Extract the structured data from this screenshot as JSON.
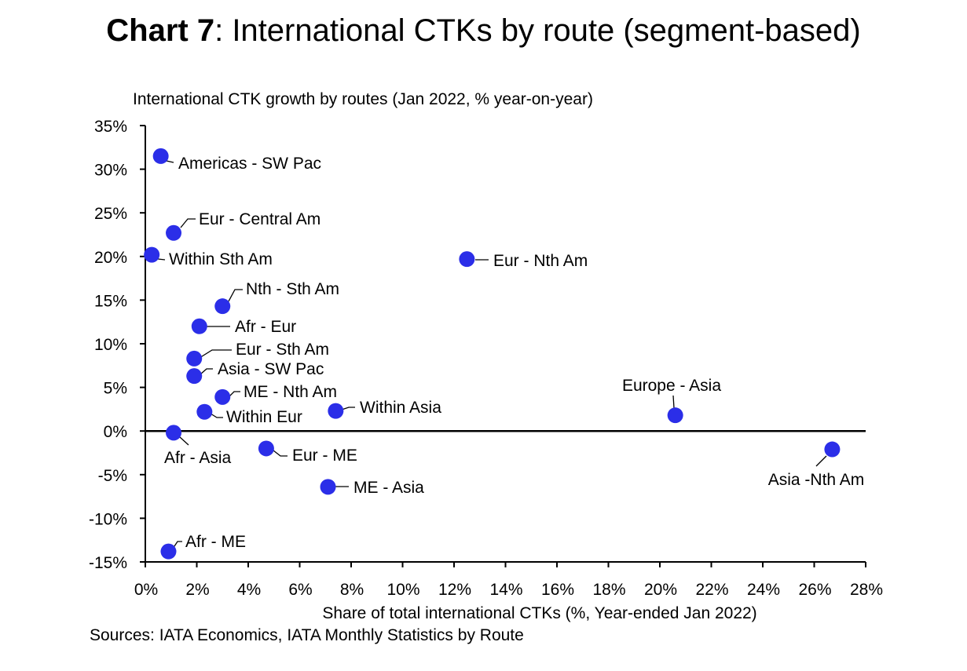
{
  "title": {
    "bold": "Chart 7",
    "rest": ": International CTKs by route (segment-based)"
  },
  "sources": "Sources: IATA Economics, IATA Monthly Statistics by Route",
  "colors": {
    "marker": "#2b2ee8",
    "axis": "#000000"
  },
  "chart_data": {
    "type": "scatter",
    "title": "International CTK growth by routes (Jan 2022, % year-on-year)",
    "xlabel": "Share of total international CTKs (%, Year-ended Jan 2022)",
    "ylabel": "",
    "xlim": [
      0,
      28
    ],
    "ylim": [
      -15,
      35
    ],
    "x_ticks": [
      "0%",
      "2%",
      "4%",
      "6%",
      "8%",
      "10%",
      "12%",
      "14%",
      "16%",
      "18%",
      "20%",
      "22%",
      "24%",
      "26%",
      "28%"
    ],
    "y_ticks": [
      "35%",
      "30%",
      "25%",
      "20%",
      "15%",
      "10%",
      "5%",
      "0%",
      "-5%",
      "-10%",
      "-15%"
    ],
    "grid": false,
    "points": [
      {
        "label": "Americas - SW Pac",
        "x": 0.6,
        "y": 31.5
      },
      {
        "label": "Eur - Central Am",
        "x": 1.1,
        "y": 22.7
      },
      {
        "label": "Within Sth Am",
        "x": 0.25,
        "y": 20.2
      },
      {
        "label": "Eur - Nth Am",
        "x": 12.5,
        "y": 19.7
      },
      {
        "label": "Nth - Sth Am",
        "x": 3.0,
        "y": 14.3
      },
      {
        "label": "Afr - Eur",
        "x": 2.1,
        "y": 12.0
      },
      {
        "label": "Eur - Sth Am",
        "x": 1.9,
        "y": 8.3
      },
      {
        "label": "Asia - SW Pac",
        "x": 1.9,
        "y": 6.3
      },
      {
        "label": "ME - Nth Am",
        "x": 3.0,
        "y": 3.9
      },
      {
        "label": "Within Eur",
        "x": 2.3,
        "y": 2.2
      },
      {
        "label": "Within Asia",
        "x": 7.4,
        "y": 2.3
      },
      {
        "label": "Europe - Asia",
        "x": 20.6,
        "y": 1.8
      },
      {
        "label": "Afr - Asia",
        "x": 1.1,
        "y": -0.2
      },
      {
        "label": "Eur - ME",
        "x": 4.7,
        "y": -2.0
      },
      {
        "label": "Asia -Nth Am",
        "x": 26.7,
        "y": -2.1
      },
      {
        "label": "ME - Asia",
        "x": 7.1,
        "y": -6.4
      },
      {
        "label": "Afr - ME",
        "x": 0.9,
        "y": -13.8
      }
    ]
  }
}
